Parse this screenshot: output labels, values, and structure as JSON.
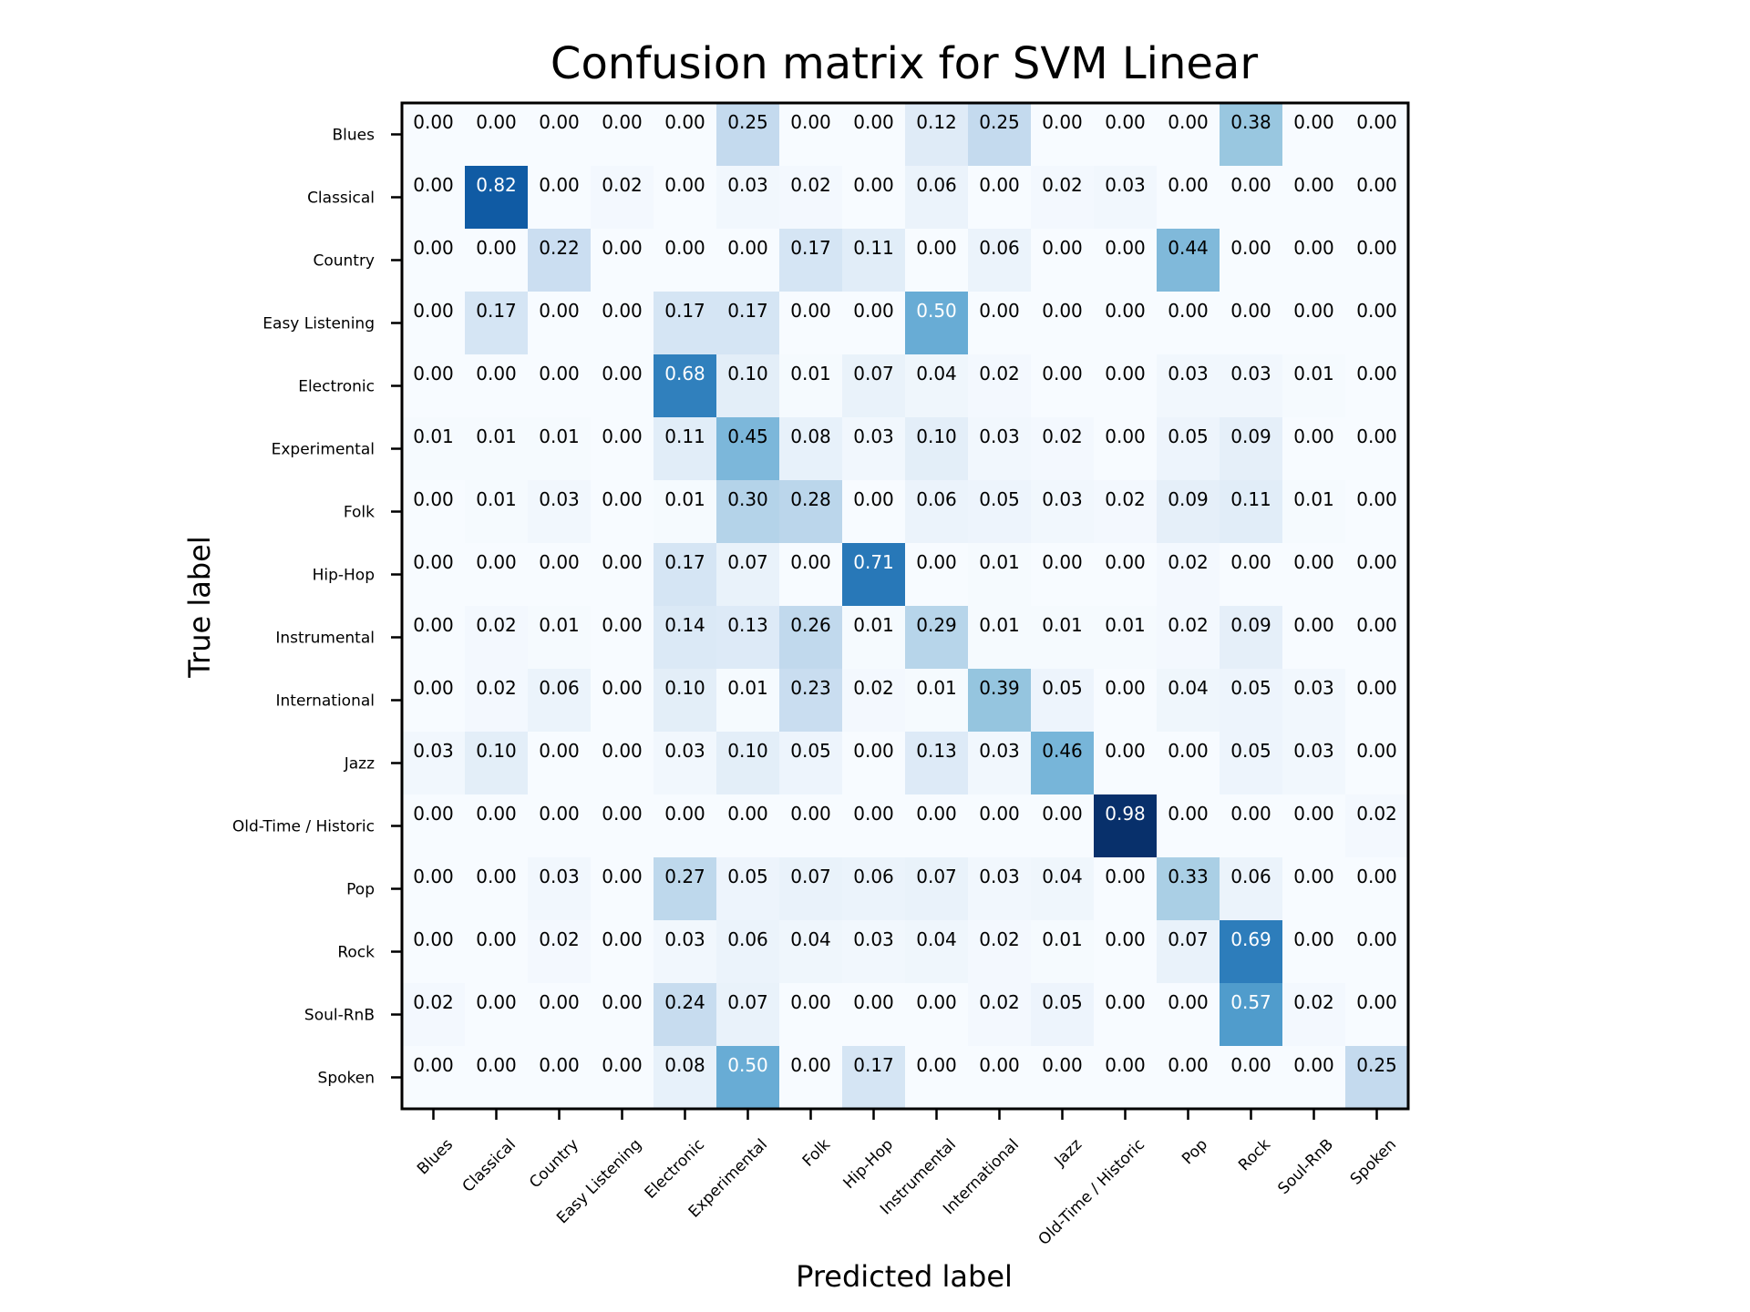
{
  "chart_data": {
    "type": "heatmap",
    "title": "Confusion matrix for SVM Linear",
    "xlabel": "Predicted label",
    "ylabel": "True label",
    "colormap": "Blues",
    "vmin": 0,
    "vmax": 0.98,
    "grid": false,
    "colors": {
      "low": "#f7fbff",
      "high": "#08306b",
      "text_dark": "#000000",
      "text_light": "#ffffff",
      "frame": "#000000"
    },
    "categories": [
      "Blues",
      "Classical",
      "Country",
      "Easy Listening",
      "Electronic",
      "Experimental",
      "Folk",
      "Hip-Hop",
      "Instrumental",
      "International",
      "Jazz",
      "Old-Time / Historic",
      "Pop",
      "Rock",
      "Soul-RnB",
      "Spoken"
    ],
    "matrix": [
      [
        0.0,
        0.0,
        0.0,
        0.0,
        0.0,
        0.25,
        0.0,
        0.0,
        0.12,
        0.25,
        0.0,
        0.0,
        0.0,
        0.38,
        0.0,
        0.0
      ],
      [
        0.0,
        0.82,
        0.0,
        0.02,
        0.0,
        0.03,
        0.02,
        0.0,
        0.06,
        0.0,
        0.02,
        0.03,
        0.0,
        0.0,
        0.0,
        0.0
      ],
      [
        0.0,
        0.0,
        0.22,
        0.0,
        0.0,
        0.0,
        0.17,
        0.11,
        0.0,
        0.06,
        0.0,
        0.0,
        0.44,
        0.0,
        0.0,
        0.0
      ],
      [
        0.0,
        0.17,
        0.0,
        0.0,
        0.17,
        0.17,
        0.0,
        0.0,
        0.5,
        0.0,
        0.0,
        0.0,
        0.0,
        0.0,
        0.0,
        0.0
      ],
      [
        0.0,
        0.0,
        0.0,
        0.0,
        0.68,
        0.1,
        0.01,
        0.07,
        0.04,
        0.02,
        0.0,
        0.0,
        0.03,
        0.03,
        0.01,
        0.0
      ],
      [
        0.01,
        0.01,
        0.01,
        0.0,
        0.11,
        0.45,
        0.08,
        0.03,
        0.1,
        0.03,
        0.02,
        0.0,
        0.05,
        0.09,
        0.0,
        0.0
      ],
      [
        0.0,
        0.01,
        0.03,
        0.0,
        0.01,
        0.3,
        0.28,
        0.0,
        0.06,
        0.05,
        0.03,
        0.02,
        0.09,
        0.11,
        0.01,
        0.0
      ],
      [
        0.0,
        0.0,
        0.0,
        0.0,
        0.17,
        0.07,
        0.0,
        0.71,
        0.0,
        0.01,
        0.0,
        0.0,
        0.02,
        0.0,
        0.0,
        0.0
      ],
      [
        0.0,
        0.02,
        0.01,
        0.0,
        0.14,
        0.13,
        0.26,
        0.01,
        0.29,
        0.01,
        0.01,
        0.01,
        0.02,
        0.09,
        0.0,
        0.0
      ],
      [
        0.0,
        0.02,
        0.06,
        0.0,
        0.1,
        0.01,
        0.23,
        0.02,
        0.01,
        0.39,
        0.05,
        0.0,
        0.04,
        0.05,
        0.03,
        0.0
      ],
      [
        0.03,
        0.1,
        0.0,
        0.0,
        0.03,
        0.1,
        0.05,
        0.0,
        0.13,
        0.03,
        0.46,
        0.0,
        0.0,
        0.05,
        0.03,
        0.0
      ],
      [
        0.0,
        0.0,
        0.0,
        0.0,
        0.0,
        0.0,
        0.0,
        0.0,
        0.0,
        0.0,
        0.0,
        0.98,
        0.0,
        0.0,
        0.0,
        0.02
      ],
      [
        0.0,
        0.0,
        0.03,
        0.0,
        0.27,
        0.05,
        0.07,
        0.06,
        0.07,
        0.03,
        0.04,
        0.0,
        0.33,
        0.06,
        0.0,
        0.0
      ],
      [
        0.0,
        0.0,
        0.02,
        0.0,
        0.03,
        0.06,
        0.04,
        0.03,
        0.04,
        0.02,
        0.01,
        0.0,
        0.07,
        0.69,
        0.0,
        0.0
      ],
      [
        0.02,
        0.0,
        0.0,
        0.0,
        0.24,
        0.07,
        0.0,
        0.0,
        0.0,
        0.02,
        0.05,
        0.0,
        0.0,
        0.57,
        0.02,
        0.0
      ],
      [
        0.0,
        0.0,
        0.0,
        0.0,
        0.08,
        0.5,
        0.0,
        0.17,
        0.0,
        0.0,
        0.0,
        0.0,
        0.0,
        0.0,
        0.0,
        0.25
      ]
    ]
  }
}
